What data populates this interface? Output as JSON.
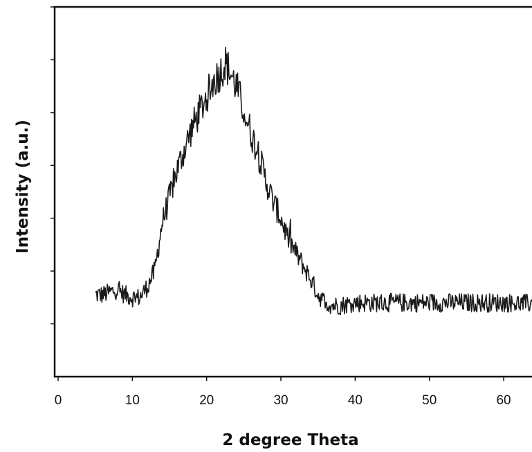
{
  "chart_data": {
    "type": "line",
    "title": "",
    "xlabel": "2 degree Theta",
    "ylabel": "Intensity (a.u.)",
    "xlim": [
      0,
      64
    ],
    "ylim": [
      0,
      7
    ],
    "x_ticks": [
      0,
      10,
      20,
      30,
      40,
      50,
      60
    ],
    "y_tick_values": [
      1,
      2,
      3,
      4,
      5,
      6,
      7
    ],
    "y_tick_labels_shown": false,
    "grid": false,
    "legend": "none",
    "line_color": "#1a1a1a",
    "series": [
      {
        "x": [
          5,
          6,
          7,
          8,
          9,
          10,
          11,
          12,
          13,
          14,
          15,
          16,
          17,
          18,
          19,
          20,
          21,
          22,
          22.5,
          23,
          24,
          25,
          26,
          27,
          28,
          29,
          30,
          31,
          32,
          33,
          34,
          35,
          36,
          37,
          38,
          40,
          45,
          50,
          55,
          60,
          64
        ],
        "values": [
          1.55,
          1.55,
          1.6,
          1.65,
          1.55,
          1.5,
          1.5,
          1.7,
          2.0,
          2.9,
          3.4,
          3.9,
          4.3,
          4.7,
          5.0,
          5.3,
          5.6,
          5.8,
          5.95,
          5.8,
          5.5,
          5.05,
          4.6,
          4.2,
          3.7,
          3.3,
          3.0,
          2.6,
          2.35,
          2.1,
          1.85,
          1.55,
          1.4,
          1.35,
          1.35,
          1.4,
          1.4,
          1.4,
          1.4,
          1.4,
          1.38
        ],
        "noise_amplitude": 0.18
      }
    ]
  }
}
